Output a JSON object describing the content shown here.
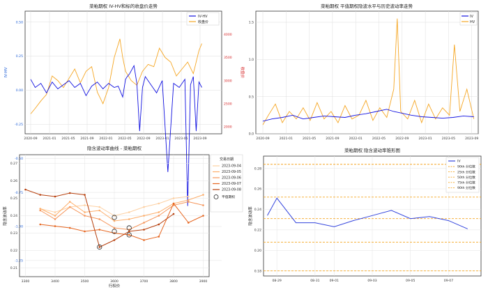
{
  "chart_data": [
    {
      "id": "p1",
      "type": "line",
      "title": "菜粕期权 IV-HV和标的收盘价走势",
      "ylabel": "IV-HV",
      "y2label": "收盘价",
      "ylim": [
        -0.32,
        0.58
      ],
      "y2lim": [
        1850,
        4500
      ],
      "xticks": [
        "2020-09",
        "2021-01",
        "2021-05",
        "2021-09",
        "2022-01",
        "2022-05",
        "2022-09",
        "2023-01",
        "2023-05",
        "2023-09"
      ],
      "yticks": [
        "0.50",
        "0.25",
        "0.00",
        "-0.25",
        "-0.50",
        "-0.75",
        "-1.00",
        "-1.25",
        "-1.50"
      ],
      "y2ticks": [
        "4000",
        "3500",
        "3000",
        "2500",
        "2000"
      ],
      "y2tick_values": [
        4000,
        3500,
        3000,
        2500,
        2000
      ],
      "yaxis_color": "#1f5fd6",
      "y2axis_color": "#d62728",
      "grid": true,
      "legend_position": "top-right",
      "series": [
        {
          "name": "IV-HV",
          "color": "#1010e0",
          "x": [
            2020.67,
            2020.75,
            2020.85,
            2020.95,
            2021.05,
            2021.15,
            2021.25,
            2021.35,
            2021.45,
            2021.55,
            2021.65,
            2021.75,
            2021.85,
            2021.95,
            2022.05,
            2022.15,
            2022.22,
            2022.3,
            2022.35,
            2022.38,
            2022.42,
            2022.5,
            2022.55,
            2022.6,
            2022.65,
            2022.7,
            2022.8,
            2022.9,
            2023.0,
            2023.1,
            2023.2,
            2023.3,
            2023.4,
            2023.45,
            2023.5,
            2023.55,
            2023.6,
            2023.65,
            2023.7
          ],
          "values": [
            0.08,
            0.02,
            0.05,
            -0.02,
            0.06,
            0.01,
            0.04,
            0.07,
            0.02,
            0.05,
            -0.04,
            0.03,
            0.06,
            0.01,
            0.05,
            0.02,
            0.03,
            -0.05,
            0.08,
            0.1,
            0.12,
            0.18,
            0.05,
            -0.3,
            0.02,
            0.1,
            0.04,
            -0.02,
            0.07,
            -0.6,
            0.05,
            0.02,
            0.08,
            -0.85,
            0.04,
            0.1,
            -0.3,
            0.06,
            0.02
          ]
        },
        {
          "name": "收盘价",
          "color": "#f5a623",
          "x": [
            2020.67,
            2020.75,
            2020.85,
            2020.95,
            2021.05,
            2021.15,
            2021.25,
            2021.35,
            2021.45,
            2021.55,
            2021.65,
            2021.75,
            2021.85,
            2021.95,
            2022.05,
            2022.15,
            2022.25,
            2022.3,
            2022.35,
            2022.45,
            2022.55,
            2022.65,
            2022.75,
            2022.85,
            2022.95,
            2023.05,
            2023.15,
            2023.25,
            2023.35,
            2023.45,
            2023.55,
            2023.65,
            2023.7
          ],
          "values": [
            2280,
            2400,
            2560,
            2700,
            3100,
            3000,
            2850,
            3050,
            3250,
            2950,
            3200,
            3300,
            2750,
            2500,
            2850,
            3500,
            3900,
            3500,
            3200,
            3000,
            2900,
            3200,
            3350,
            3300,
            3700,
            3500,
            3400,
            3100,
            3250,
            3400,
            3150,
            3650,
            3800
          ]
        }
      ]
    },
    {
      "id": "p2",
      "type": "line",
      "title": "菜粕期权 平值期权隐波水平与历史波动率走势",
      "ylim": [
        0,
        1.65
      ],
      "xticks": [
        "2020-09",
        "2021-01",
        "2021-05",
        "2021-09",
        "2022-01",
        "2022-05",
        "2022-09",
        "2023-01",
        "2023-05",
        "2023-09"
      ],
      "yticks": [
        "1.5",
        "1.0",
        "0.5",
        "0.0"
      ],
      "grid": true,
      "legend_position": "top-right",
      "series": [
        {
          "name": "IV",
          "color": "#1010e0",
          "x": [
            2020.67,
            2020.8,
            2020.95,
            2021.1,
            2021.25,
            2021.4,
            2021.55,
            2021.7,
            2021.85,
            2022.0,
            2022.15,
            2022.3,
            2022.45,
            2022.55,
            2022.65,
            2022.8,
            2022.95,
            2023.1,
            2023.25,
            2023.4,
            2023.55,
            2023.7
          ],
          "values": [
            0.17,
            0.2,
            0.22,
            0.25,
            0.2,
            0.22,
            0.24,
            0.23,
            0.22,
            0.25,
            0.27,
            0.3,
            0.33,
            0.3,
            0.28,
            0.25,
            0.23,
            0.22,
            0.21,
            0.22,
            0.24,
            0.23
          ]
        },
        {
          "name": "HV",
          "color": "#f5a623",
          "x": [
            2020.67,
            2020.75,
            2020.85,
            2020.95,
            2021.05,
            2021.15,
            2021.25,
            2021.35,
            2021.45,
            2021.55,
            2021.65,
            2021.75,
            2021.85,
            2021.95,
            2022.05,
            2022.15,
            2022.25,
            2022.35,
            2022.45,
            2022.55,
            2022.6,
            2022.65,
            2022.75,
            2022.85,
            2022.95,
            2023.05,
            2023.15,
            2023.25,
            2023.35,
            2023.42,
            2023.5,
            2023.6,
            2023.7
          ],
          "values": [
            0.12,
            0.25,
            0.4,
            0.15,
            0.3,
            0.2,
            0.35,
            0.18,
            0.42,
            0.2,
            0.3,
            0.15,
            0.38,
            0.2,
            0.25,
            0.45,
            0.18,
            0.35,
            0.22,
            0.6,
            1.55,
            0.3,
            0.2,
            0.45,
            0.15,
            0.4,
            0.2,
            0.35,
            0.25,
            1.2,
            0.3,
            0.6,
            0.2
          ]
        }
      ]
    },
    {
      "id": "p3",
      "type": "line",
      "title": "隐含波动率曲线 - 菜粕期权",
      "xlabel": "行权价",
      "ylabel": "隐含波动率",
      "xlim": [
        3280,
        3920
      ],
      "ylim": [
        0.205,
        0.275
      ],
      "xticks": [
        "3300",
        "3400",
        "3500",
        "3600",
        "3700",
        "3800",
        "3900"
      ],
      "xtick_values": [
        3300,
        3400,
        3500,
        3600,
        3700,
        3800,
        3900
      ],
      "yticks": [
        "0.27",
        "0.26",
        "0.25",
        "0.24",
        "0.23",
        "0.22",
        "0.21"
      ],
      "ytick_values": [
        0.27,
        0.26,
        0.25,
        0.24,
        0.23,
        0.22,
        0.21
      ],
      "legend_title": "交易日期",
      "legend_position": "right",
      "flat_label": "平值期权",
      "grid": true,
      "x": [
        3300,
        3350,
        3400,
        3450,
        3500,
        3550,
        3600,
        3650,
        3700,
        3750,
        3800,
        3850,
        3900
      ],
      "series": [
        {
          "name": "2023-09-04",
          "color": "#fdd0a2",
          "values": [
            null,
            0.244,
            0.242,
            0.245,
            0.246,
            0.245,
            0.24,
            0.242,
            0.245,
            0.247,
            0.25,
            0.251,
            null
          ]
        },
        {
          "name": "2023-09-05",
          "color": "#fdae6b",
          "values": [
            null,
            0.244,
            0.24,
            0.248,
            0.242,
            0.243,
            0.237,
            0.238,
            0.24,
            0.242,
            0.247,
            0.249,
            0.252
          ]
        },
        {
          "name": "2023-09-06",
          "color": "#f5955a",
          "values": [
            null,
            0.243,
            0.238,
            0.245,
            0.24,
            0.238,
            0.233,
            0.232,
            0.236,
            0.24,
            0.246,
            0.248,
            0.246
          ]
        },
        {
          "name": "2023-09-07",
          "color": "#e6651f",
          "values": [
            null,
            0.235,
            0.234,
            0.233,
            0.231,
            0.232,
            0.23,
            0.229,
            0.226,
            0.228,
            0.247,
            0.236,
            0.24
          ]
        },
        {
          "name": "2023-09-08",
          "color": "#b7400e",
          "values": [
            0.255,
            0.252,
            0.251,
            0.253,
            0.252,
            0.222,
            0.226,
            0.231,
            0.232,
            0.235,
            0.241,
            null,
            null
          ]
        }
      ],
      "flat_points": [
        [
          3550,
          0.222
        ],
        [
          3600,
          0.239
        ],
        [
          3600,
          0.231
        ],
        [
          3650,
          0.233
        ],
        [
          3650,
          0.229
        ]
      ]
    },
    {
      "id": "p4",
      "type": "line",
      "title": "菜粕期权 隐含波动率锥形图",
      "ylabel": "隐含波动率",
      "ylim": [
        0.175,
        0.292
      ],
      "yticks": [
        "0.28",
        "0.26",
        "0.24",
        "0.22",
        "0.20",
        "0.18"
      ],
      "ytick_values": [
        0.28,
        0.26,
        0.24,
        0.22,
        0.2,
        0.18
      ],
      "xticks": [
        "08-29",
        "08-31",
        "09-01",
        "09-03",
        "09-05",
        "09-07"
      ],
      "xtick_values": [
        1,
        3,
        4,
        6,
        8,
        10
      ],
      "xlim": [
        0.3,
        11.7
      ],
      "grid": true,
      "legend_position": "top-right",
      "series": [
        {
          "name": "IV",
          "color": "#3344dd",
          "x": [
            0.5,
            1,
            2,
            3,
            4,
            5,
            6,
            7,
            8,
            9,
            10,
            11
          ],
          "values": [
            0.234,
            0.251,
            0.227,
            0.227,
            0.223,
            0.229,
            0.234,
            0.239,
            0.231,
            0.233,
            0.229,
            0.221
          ]
        }
      ],
      "percentile_lines": [
        {
          "name": "90th 分位数",
          "value": 0.284,
          "color": "#f5a623"
        },
        {
          "name": "25th 分位数",
          "value": 0.208,
          "color": "#f5a623"
        },
        {
          "name": "50th 分位数",
          "value": 0.231,
          "color": "#f5a623"
        },
        {
          "name": "75th 分位数",
          "value": 0.252,
          "color": "#f5a623"
        },
        {
          "name": "90th 分位数",
          "value": 0.18,
          "color": "#f5a623"
        }
      ]
    }
  ]
}
